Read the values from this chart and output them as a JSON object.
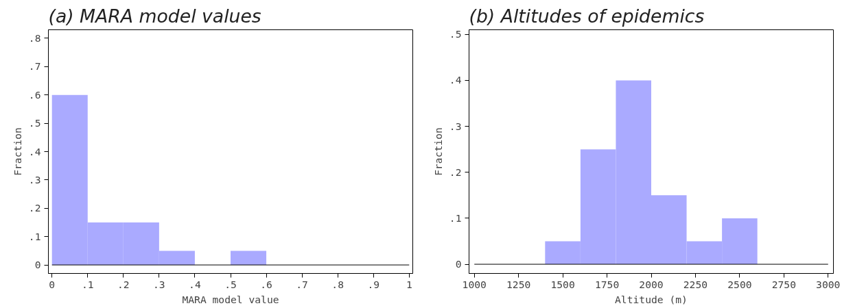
{
  "chart_data": [
    {
      "type": "histogram",
      "title": "(a) MARA model values",
      "xlabel": "MARA model value",
      "ylabel": "Fraction",
      "bins": [
        0,
        0.1,
        0.2,
        0.3,
        0.4,
        0.5,
        0.6,
        0.7,
        0.8,
        0.9,
        1
      ],
      "values": [
        0.6,
        0.15,
        0.15,
        0.05,
        0,
        0.05,
        0,
        0,
        0,
        0
      ],
      "color": "#aaaaff",
      "ref_lines": [
        {
          "axis": "y",
          "value": 0,
          "color": "#000000"
        }
      ],
      "xlim": [
        -0.01,
        1.01
      ],
      "ylim": [
        -0.03,
        0.83
      ],
      "xticks": [
        0,
        {
          "value": 0.1,
          "label": ".1"
        },
        {
          "value": 0.2,
          "label": ".2"
        },
        {
          "value": 0.3,
          "label": ".3"
        },
        {
          "value": 0.4,
          "label": ".4"
        },
        {
          "value": 0.5,
          "label": ".5"
        },
        {
          "value": 0.6,
          "label": ".6"
        },
        {
          "value": 0.7,
          "label": ".7"
        },
        {
          "value": 0.8,
          "label": ".8"
        },
        {
          "value": 0.9,
          "label": ".9"
        },
        1
      ],
      "yticks": [
        0,
        {
          "value": 0.1,
          "label": ".1"
        },
        {
          "value": 0.2,
          "label": ".2"
        },
        {
          "value": 0.3,
          "label": ".3"
        },
        {
          "value": 0.4,
          "label": ".4"
        },
        {
          "value": 0.5,
          "label": ".5"
        },
        {
          "value": 0.6,
          "label": ".6"
        },
        {
          "value": 0.7,
          "label": ".7"
        },
        {
          "value": 0.8,
          "label": ".8"
        }
      ],
      "grid": false
    },
    {
      "type": "histogram",
      "title": "(b) Altitudes of epidemics",
      "xlabel": "Altitude (m)",
      "ylabel": "Fraction",
      "bins": [
        1000,
        1200,
        1400,
        1600,
        1800,
        2000,
        2200,
        2400,
        2600,
        2800,
        3000
      ],
      "values": [
        0,
        0,
        0.05,
        0.25,
        0.4,
        0.15,
        0.05,
        0.1,
        0,
        0
      ],
      "color": "#aaaaff",
      "ref_lines": [
        {
          "axis": "y",
          "value": 0,
          "color": "#000000"
        }
      ],
      "xlim": [
        970,
        3030
      ],
      "ylim": [
        -0.02,
        0.51
      ],
      "xticks": [
        1000,
        1250,
        1500,
        1750,
        2000,
        2250,
        2500,
        2750,
        3000
      ],
      "yticks": [
        0,
        {
          "value": 0.1,
          "label": ".1"
        },
        {
          "value": 0.2,
          "label": ".2"
        },
        {
          "value": 0.3,
          "label": ".3"
        },
        {
          "value": 0.4,
          "label": ".4"
        },
        {
          "value": 0.5,
          "label": ".5"
        }
      ],
      "grid": false
    }
  ]
}
